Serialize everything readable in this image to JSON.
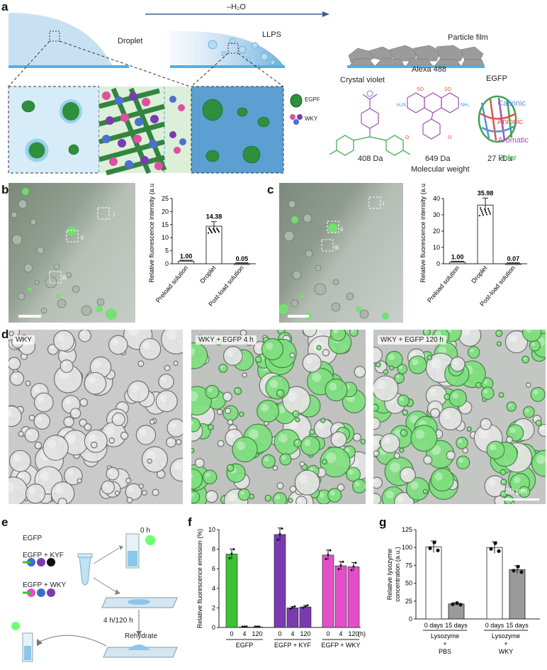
{
  "panel_labels": {
    "a": "a",
    "b": "b",
    "c": "c",
    "d": "d",
    "e": "e",
    "f": "f",
    "g": "g"
  },
  "panel_a": {
    "arrow_label": "–H₂O",
    "droplet_label": "Droplet",
    "llps_label": "LLPS",
    "particle_film_label": "Particle film",
    "legend_egpf": "EGPF",
    "legend_wky": "WKY",
    "molecules": [
      {
        "name": "Crystal violet",
        "weight": "408 Da"
      },
      {
        "name": "Alexa 488",
        "weight": "649 Da"
      },
      {
        "name": "EGFP",
        "weight": "27 kDa"
      }
    ],
    "molecular_weight_label": "Molecular weight",
    "residue_types": [
      {
        "label": "Cationic",
        "color": "#5b8fd9"
      },
      {
        "label": "Anionic",
        "color": "#e0534f"
      },
      {
        "label": "Aromatic",
        "color": "#a24fb5"
      },
      {
        "label": "Polar",
        "color": "#3aa64b"
      }
    ]
  },
  "panel_b": {
    "roi_labels": [
      "i",
      "ii",
      "iii"
    ],
    "chart_data": {
      "type": "bar",
      "categories": [
        "Preload solution",
        "Droplet",
        "Post-load solution"
      ],
      "values": [
        1.0,
        14.38,
        0.05
      ],
      "value_labels": [
        "1.00",
        "14.38",
        "0.05"
      ],
      "ylabel": "Relative fluorescence intensity (a.u.)",
      "ylim": [
        0,
        25
      ],
      "yticks": [
        "0",
        "5",
        "10",
        "15",
        "20",
        "25"
      ]
    }
  },
  "panel_c": {
    "roi_labels": [
      "i",
      "ii",
      "iii"
    ],
    "chart_data": {
      "type": "bar",
      "categories": [
        "Preload solution",
        "Droplet",
        "Post-load solution"
      ],
      "values": [
        1.0,
        35.98,
        0.07
      ],
      "value_labels": [
        "1.00",
        "35.98",
        "0.07"
      ],
      "ylabel": "Relative fluorescence intensity (a.u.)",
      "ylim": [
        0,
        40
      ],
      "yticks": [
        "0",
        "10",
        "20",
        "30",
        "40"
      ]
    }
  },
  "panel_d": {
    "tags": [
      "WKY",
      "WKY + EGFP  4 h",
      "WKY + EGFP  120 h"
    ],
    "scale_bar": "20 μm"
  },
  "panel_e": {
    "labels": {
      "egfp": "EGFP",
      "egfp_kyf": "EGFP + KYF",
      "egfp_wky": "EGFP + WKY",
      "time0": "0 h",
      "time": "4 h/120 h",
      "rehydrate": "Rehydrate"
    }
  },
  "panel_f": {
    "chart_data": {
      "type": "bar",
      "ylabel": "Relative fluorescence emission (%)",
      "ylim": [
        0,
        10
      ],
      "yticks": [
        "0",
        "2",
        "4",
        "6",
        "8",
        "10"
      ],
      "groups": [
        {
          "name": "EGFP",
          "color": "#3cc233",
          "categories": [
            "0",
            "4",
            "120"
          ],
          "values": [
            7.5,
            0.05,
            0.05
          ]
        },
        {
          "name": "EGFP + KYF",
          "color": "#7b3bb0",
          "categories": [
            "0",
            "4",
            "120"
          ],
          "values": [
            9.5,
            2.0,
            2.1
          ]
        },
        {
          "name": "EGFP + WKY",
          "color": "#e44fc9",
          "categories": [
            "0",
            "4",
            "120"
          ],
          "values": [
            7.4,
            6.3,
            6.2
          ]
        }
      ],
      "unit_label": "(h)"
    }
  },
  "panel_g": {
    "chart_data": {
      "type": "bar",
      "ylabel": "Relative lysozyme concentration (a.u.)",
      "ylim": [
        0,
        125
      ],
      "yticks": [
        "0",
        "25",
        "50",
        "75",
        "100",
        "125"
      ],
      "groups": [
        {
          "name": "Lysozyme + PBS",
          "name_lines": [
            "Lysozyme",
            "+",
            "PBS"
          ],
          "categories": [
            "0 days",
            "15 days"
          ],
          "values": [
            101,
            21
          ],
          "colors": [
            "#ffffff",
            "#9a9a9a"
          ]
        },
        {
          "name": "Lysozyme + WKY",
          "name_lines": [
            "Lysozyme",
            "+",
            "WKY"
          ],
          "categories": [
            "0 days",
            "15 days"
          ],
          "values": [
            100,
            69
          ],
          "colors": [
            "#ffffff",
            "#9a9a9a"
          ]
        }
      ]
    }
  }
}
